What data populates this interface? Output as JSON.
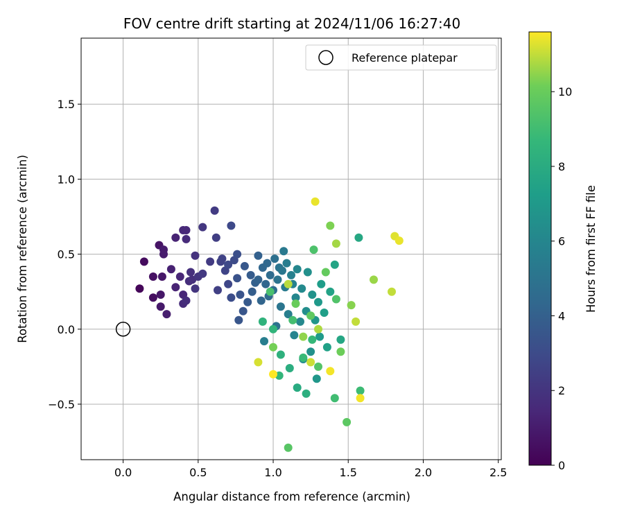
{
  "chart_data": {
    "type": "scatter",
    "title": "FOV centre drift starting at 2024/11/06 16:27:40",
    "xlabel": "Angular distance from reference (arcmin)",
    "ylabel": "Rotation from reference (arcmin)",
    "xlim": [
      -0.28,
      2.52
    ],
    "ylim": [
      -0.87,
      1.94
    ],
    "xticks": [
      0.0,
      0.5,
      1.0,
      1.5,
      2.0,
      2.5
    ],
    "xtick_labels": [
      "0.0",
      "0.5",
      "1.0",
      "1.5",
      "2.0",
      "2.5"
    ],
    "yticks": [
      -0.5,
      0.0,
      0.5,
      1.0,
      1.5
    ],
    "ytick_labels": [
      "−0.5",
      "0.0",
      "0.5",
      "1.0",
      "1.5"
    ],
    "grid": true,
    "legend": {
      "placement": "top-right",
      "entries": [
        "Reference platepar"
      ]
    },
    "reference_point": {
      "x": 0.0,
      "y": 0.0
    },
    "colorbar": {
      "label": "Hours from first FF file",
      "range": [
        0,
        11.6
      ],
      "ticks": [
        0,
        2,
        4,
        6,
        8,
        10
      ],
      "tick_labels": [
        "0",
        "2",
        "4",
        "6",
        "8",
        "10"
      ],
      "colormap": "viridis"
    },
    "series": [
      {
        "points": [
          [
            0.11,
            0.27,
            0.2
          ],
          [
            0.14,
            0.45,
            0.4
          ],
          [
            0.2,
            0.21,
            0.5
          ],
          [
            0.2,
            0.35,
            0.6
          ],
          [
            0.24,
            0.56,
            0.7
          ],
          [
            0.25,
            0.23,
            0.8
          ],
          [
            0.26,
            0.35,
            0.8
          ],
          [
            0.25,
            0.15,
            0.9
          ],
          [
            0.27,
            0.53,
            1.0
          ],
          [
            0.27,
            0.5,
            1.0
          ],
          [
            0.29,
            0.1,
            1.1
          ],
          [
            0.32,
            0.4,
            1.2
          ],
          [
            0.35,
            0.61,
            1.3
          ],
          [
            0.35,
            0.28,
            1.3
          ],
          [
            0.38,
            0.35,
            1.4
          ],
          [
            0.4,
            0.23,
            1.4
          ],
          [
            0.4,
            0.66,
            1.5
          ],
          [
            0.42,
            0.66,
            1.5
          ],
          [
            0.4,
            0.17,
            1.6
          ],
          [
            0.42,
            0.6,
            1.6
          ],
          [
            0.42,
            0.19,
            1.7
          ],
          [
            0.44,
            0.32,
            1.7
          ],
          [
            0.45,
            0.38,
            1.8
          ],
          [
            0.46,
            0.33,
            1.8
          ],
          [
            0.48,
            0.49,
            1.9
          ],
          [
            0.48,
            0.27,
            2.0
          ],
          [
            0.5,
            0.35,
            2.0
          ],
          [
            0.53,
            0.68,
            2.1
          ],
          [
            0.53,
            0.37,
            2.2
          ],
          [
            0.58,
            0.45,
            2.3
          ],
          [
            0.61,
            0.79,
            2.3
          ],
          [
            0.62,
            0.61,
            2.4
          ],
          [
            0.63,
            0.26,
            2.5
          ],
          [
            0.65,
            0.45,
            2.6
          ],
          [
            0.66,
            0.47,
            2.6
          ],
          [
            0.68,
            0.39,
            2.7
          ],
          [
            0.7,
            0.3,
            2.8
          ],
          [
            0.7,
            0.43,
            2.9
          ],
          [
            0.72,
            0.69,
            2.9
          ],
          [
            0.74,
            0.46,
            3.0
          ],
          [
            0.72,
            0.21,
            3.1
          ],
          [
            0.76,
            0.5,
            3.2
          ],
          [
            0.76,
            0.34,
            3.3
          ],
          [
            0.78,
            0.23,
            3.4
          ],
          [
            0.77,
            0.06,
            3.5
          ],
          [
            0.8,
            0.12,
            3.5
          ],
          [
            0.81,
            0.42,
            3.6
          ],
          [
            0.83,
            0.18,
            3.7
          ],
          [
            0.85,
            0.36,
            3.8
          ],
          [
            0.86,
            0.25,
            3.9
          ],
          [
            0.88,
            0.31,
            4.0
          ],
          [
            0.9,
            0.49,
            4.0
          ],
          [
            0.9,
            0.33,
            4.1
          ],
          [
            0.92,
            0.19,
            4.2
          ],
          [
            0.93,
            0.41,
            4.3
          ],
          [
            0.95,
            0.3,
            4.3
          ],
          [
            0.96,
            0.44,
            4.4
          ],
          [
            0.97,
            0.22,
            4.5
          ],
          [
            0.98,
            0.36,
            4.6
          ],
          [
            1.0,
            0.26,
            4.7
          ],
          [
            1.01,
            0.47,
            4.8
          ],
          [
            1.02,
            0.02,
            4.9
          ],
          [
            1.03,
            0.33,
            5.0
          ],
          [
            1.04,
            0.41,
            5.0
          ],
          [
            1.05,
            0.15,
            5.1
          ],
          [
            1.06,
            0.39,
            5.2
          ],
          [
            1.07,
            0.52,
            5.3
          ],
          [
            1.08,
            0.28,
            5.4
          ],
          [
            1.09,
            0.44,
            5.5
          ],
          [
            1.1,
            0.1,
            5.6
          ],
          [
            0.94,
            -0.08,
            5.6
          ],
          [
            1.12,
            0.36,
            5.7
          ],
          [
            1.13,
            0.3,
            5.8
          ],
          [
            1.14,
            -0.04,
            5.9
          ],
          [
            1.15,
            0.21,
            6.0
          ],
          [
            1.16,
            0.4,
            6.0
          ],
          [
            1.18,
            0.05,
            6.1
          ],
          [
            1.19,
            0.27,
            6.2
          ],
          [
            1.2,
            -0.2,
            6.3
          ],
          [
            1.22,
            0.12,
            6.4
          ],
          [
            1.23,
            0.38,
            6.5
          ],
          [
            1.25,
            -0.15,
            6.6
          ],
          [
            1.26,
            0.23,
            6.7
          ],
          [
            1.28,
            0.06,
            6.8
          ],
          [
            1.29,
            -0.33,
            6.9
          ],
          [
            1.3,
            0.18,
            7.0
          ],
          [
            1.31,
            -0.05,
            7.1
          ],
          [
            1.32,
            0.3,
            7.2
          ],
          [
            1.34,
            0.11,
            7.3
          ],
          [
            1.36,
            -0.12,
            7.4
          ],
          [
            1.38,
            0.25,
            7.5
          ],
          [
            1.41,
            0.43,
            7.6
          ],
          [
            1.45,
            -0.07,
            7.7
          ],
          [
            1.57,
            0.61,
            7.8
          ],
          [
            1.16,
            -0.39,
            8.0
          ],
          [
            1.11,
            -0.26,
            8.1
          ],
          [
            1.22,
            -0.43,
            8.2
          ],
          [
            1.05,
            -0.17,
            8.3
          ],
          [
            0.93,
            0.05,
            8.4
          ],
          [
            1.0,
            0.0,
            8.5
          ],
          [
            1.04,
            -0.31,
            8.6
          ],
          [
            1.26,
            -0.07,
            8.7
          ],
          [
            1.2,
            -0.19,
            8.8
          ],
          [
            1.58,
            -0.41,
            8.9
          ],
          [
            1.41,
            -0.46,
            9.0
          ],
          [
            1.13,
            0.06,
            9.1
          ],
          [
            0.98,
            0.25,
            9.2
          ],
          [
            1.27,
            0.53,
            9.3
          ],
          [
            1.42,
            0.2,
            9.4
          ],
          [
            1.3,
            -0.25,
            9.5
          ],
          [
            1.1,
            -0.79,
            9.6
          ],
          [
            1.49,
            -0.62,
            9.7
          ],
          [
            1.25,
            0.09,
            9.8
          ],
          [
            1.35,
            0.38,
            9.9
          ],
          [
            1.15,
            0.17,
            10.0
          ],
          [
            1.45,
            -0.15,
            10.1
          ],
          [
            1.0,
            -0.12,
            10.2
          ],
          [
            1.38,
            0.69,
            10.3
          ],
          [
            1.52,
            0.16,
            10.4
          ],
          [
            1.2,
            -0.05,
            10.5
          ],
          [
            1.67,
            0.33,
            10.6
          ],
          [
            1.42,
            0.57,
            10.7
          ],
          [
            1.3,
            0.0,
            10.8
          ],
          [
            1.1,
            0.3,
            10.9
          ],
          [
            1.55,
            0.05,
            11.0
          ],
          [
            1.79,
            0.25,
            11.0
          ],
          [
            1.25,
            -0.22,
            11.1
          ],
          [
            0.9,
            -0.22,
            11.2
          ],
          [
            1.81,
            0.62,
            11.3
          ],
          [
            1.84,
            0.59,
            11.4
          ],
          [
            1.28,
            0.85,
            11.4
          ],
          [
            1.58,
            -0.46,
            11.5
          ],
          [
            1.38,
            -0.28,
            11.5
          ],
          [
            1.0,
            -0.3,
            11.6
          ]
        ]
      }
    ]
  }
}
